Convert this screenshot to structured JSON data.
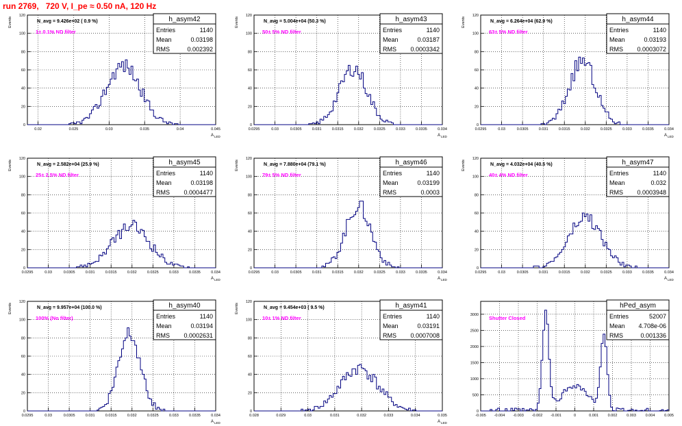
{
  "run_title": "run 2769,   720 V, I_pe ≈ 0.50 nA, 120 Hz",
  "colors": {
    "title": "#ff0000",
    "annotation": "#ff00ff",
    "histogram": "#000080",
    "grid": "#000000"
  },
  "chart_data": [
    {
      "type": "histogram",
      "name": "h_asym42",
      "stats": {
        "entries": "1140",
        "mean": "0.03198",
        "rms": "0.002392"
      },
      "navg": "N_avg = 9.426e+02 ( 0.9 %)",
      "filter": "1± 0.1% ND filter",
      "ylabel": "Events",
      "xlabel": "A_LED",
      "xlim": [
        0.0185,
        0.045
      ],
      "ylim": [
        0,
        120
      ],
      "xticks": [
        "0.02",
        "0.025",
        "0.03",
        "0.035",
        "0.04",
        "0.045"
      ],
      "yticks": [
        "0",
        "20",
        "40",
        "60",
        "80",
        "100",
        "120"
      ],
      "shape": {
        "kind": "gauss",
        "mean": 0.032,
        "sigma": 0.0024,
        "peak": 65,
        "seed": 42
      }
    },
    {
      "type": "histogram",
      "name": "h_asym43",
      "stats": {
        "entries": "1140",
        "mean": "0.03187",
        "rms": "0.0003342"
      },
      "navg": "N_avg = 5.004e+04 (50.3 %)",
      "filter": "50± 5% ND filter",
      "ylabel": "Events",
      "xlabel": "A_LED",
      "xlim": [
        0.0295,
        0.034
      ],
      "ylim": [
        0,
        120
      ],
      "xticks": [
        "0.0295",
        "0.03",
        "0.0305",
        "0.031",
        "0.0315",
        "0.032",
        "0.0325",
        "0.033",
        "0.0335",
        "0.034"
      ],
      "yticks": [
        "0",
        "20",
        "40",
        "60",
        "80",
        "100",
        "120"
      ],
      "shape": {
        "kind": "gauss",
        "mean": 0.03187,
        "sigma": 0.00033,
        "peak": 62,
        "seed": 43
      }
    },
    {
      "type": "histogram",
      "name": "h_asym44",
      "stats": {
        "entries": "1140",
        "mean": "0.03193",
        "rms": "0.0003072"
      },
      "navg": "N_avg = 6.264e+04 (62.9 %)",
      "filter": "63± 5% ND filter",
      "ylabel": "Events",
      "xlabel": "A_LED",
      "xlim": [
        0.0295,
        0.034
      ],
      "ylim": [
        0,
        120
      ],
      "xticks": [
        "0.0295",
        "0.03",
        "0.0305",
        "0.031",
        "0.0315",
        "0.032",
        "0.0325",
        "0.033",
        "0.0335",
        "0.034"
      ],
      "yticks": [
        "0",
        "20",
        "40",
        "60",
        "80",
        "100",
        "120"
      ],
      "shape": {
        "kind": "gauss",
        "mean": 0.03193,
        "sigma": 0.00031,
        "peak": 70,
        "seed": 44
      }
    },
    {
      "type": "histogram",
      "name": "h_asym45",
      "stats": {
        "entries": "1140",
        "mean": "0.03198",
        "rms": "0.0004477"
      },
      "navg": "N_avg = 2.582e+04 (25.9 %)",
      "filter": "25± 2.5% ND filter",
      "ylabel": "Events",
      "xlabel": "A_LED",
      "xlim": [
        0.0295,
        0.034
      ],
      "ylim": [
        0,
        120
      ],
      "xticks": [
        "0.0295",
        "0.03",
        "0.0305",
        "0.031",
        "0.0315",
        "0.032",
        "0.0325",
        "0.033",
        "0.0335",
        "0.034"
      ],
      "yticks": [
        "0",
        "20",
        "40",
        "60",
        "80",
        "100",
        "120"
      ],
      "shape": {
        "kind": "gauss",
        "mean": 0.03198,
        "sigma": 0.00045,
        "peak": 45,
        "seed": 45
      }
    },
    {
      "type": "histogram",
      "name": "h_asym46",
      "stats": {
        "entries": "1140",
        "mean": "0.03199",
        "rms": "0.0003"
      },
      "navg": "N_avg = 7.880e+04 (79.1 %)",
      "filter": "79± 5% ND filter",
      "ylabel": "Events",
      "xlabel": "A_LED",
      "xlim": [
        0.0295,
        0.034
      ],
      "ylim": [
        0,
        120
      ],
      "xticks": [
        "0.0295",
        "0.03",
        "0.0305",
        "0.031",
        "0.0315",
        "0.032",
        "0.0325",
        "0.033",
        "0.0335",
        "0.034"
      ],
      "yticks": [
        "0",
        "20",
        "40",
        "60",
        "80",
        "100",
        "120"
      ],
      "shape": {
        "kind": "gauss",
        "mean": 0.03199,
        "sigma": 0.0003,
        "peak": 68,
        "seed": 46
      }
    },
    {
      "type": "histogram",
      "name": "h_asym47",
      "stats": {
        "entries": "1140",
        "mean": "0.032",
        "rms": "0.0003948"
      },
      "navg": "N_avg = 4.032e+04 (40.5 %)",
      "filter": "40± 4% ND filter",
      "ylabel": "Events",
      "xlabel": "A_LED",
      "xlim": [
        0.0295,
        0.034
      ],
      "ylim": [
        0,
        120
      ],
      "xticks": [
        "0.0295",
        "0.03",
        "0.0305",
        "0.031",
        "0.0315",
        "0.032",
        "0.0325",
        "0.033",
        "0.0335",
        "0.034"
      ],
      "yticks": [
        "0",
        "20",
        "40",
        "60",
        "80",
        "100",
        "120"
      ],
      "shape": {
        "kind": "gauss",
        "mean": 0.032,
        "sigma": 0.00039,
        "peak": 55,
        "seed": 47
      }
    },
    {
      "type": "histogram",
      "name": "h_asym40",
      "stats": {
        "entries": "1140",
        "mean": "0.03194",
        "rms": "0.0002631"
      },
      "navg": "N_avg = 9.957e+04 (100.0 %)",
      "filter": "100% (No filter)",
      "ylabel": "Events",
      "xlabel": "A_LED",
      "xlim": [
        0.0295,
        0.034
      ],
      "ylim": [
        0,
        120
      ],
      "xticks": [
        "0.0295",
        "0.03",
        "0.0305",
        "0.031",
        "0.0315",
        "0.032",
        "0.0325",
        "0.033",
        "0.0335",
        "0.034"
      ],
      "yticks": [
        "0",
        "20",
        "40",
        "60",
        "80",
        "100",
        "120"
      ],
      "shape": {
        "kind": "gauss",
        "mean": 0.03194,
        "sigma": 0.00026,
        "peak": 88,
        "seed": 40
      }
    },
    {
      "type": "histogram",
      "name": "h_asym41",
      "stats": {
        "entries": "1140",
        "mean": "0.03191",
        "rms": "0.0007008"
      },
      "navg": "N_avg = 9.454e+03 ( 9.5 %)",
      "filter": "10± 1% ND filter",
      "ylabel": "Events",
      "xlabel": "A_LED",
      "xlim": [
        0.028,
        0.035
      ],
      "ylim": [
        0,
        120
      ],
      "xticks": [
        "0.028",
        "0.029",
        "0.03",
        "0.031",
        "0.032",
        "0.033",
        "0.034",
        "0.035"
      ],
      "yticks": [
        "0",
        "20",
        "40",
        "60",
        "80",
        "100",
        "120"
      ],
      "shape": {
        "kind": "gauss",
        "mean": 0.03191,
        "sigma": 0.0007,
        "peak": 47,
        "seed": 41
      }
    },
    {
      "type": "histogram",
      "name": "hPed_asym",
      "stats": {
        "entries": "52007",
        "mean": "4.708e-06",
        "rms": "0.001336"
      },
      "navg": "",
      "filter": "Shutter Closed",
      "ylabel": "",
      "xlabel": "",
      "xlim": [
        -0.005,
        0.005
      ],
      "ylim": [
        0,
        3400
      ],
      "xticks": [
        "-0.005",
        "-0.004",
        "-0.003",
        "-0.002",
        "-0.001",
        "0",
        "0.001",
        "0.002",
        "0.003",
        "0.004",
        "0.005"
      ],
      "yticks": [
        "0",
        "500",
        "1000",
        "1500",
        "2000",
        "2500",
        "3000"
      ],
      "shape": {
        "kind": "pedestal",
        "seed": 99
      }
    }
  ]
}
